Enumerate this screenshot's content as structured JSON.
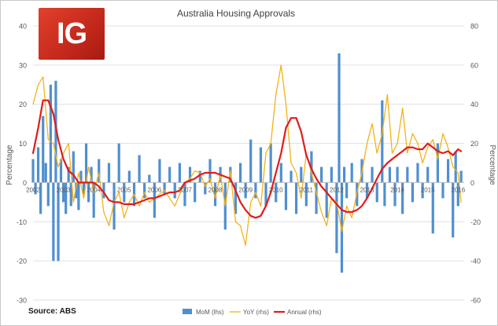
{
  "logo": {
    "text": "IG",
    "color": "#d2321f"
  },
  "source": "Source: ABS",
  "colors": {
    "mom": "#4f8fd0",
    "yoy": "#f3b21a",
    "annual": "#e11b1b",
    "grid": "#e0e0e0",
    "axis": "#bfbfbf",
    "text": "#595959"
  },
  "chart_data": {
    "type": "bar+line",
    "title": "Australia Housing Approvals",
    "ylabel_left": "Percentage",
    "ylabel_right": "Percentage",
    "ylim_left": [
      -30,
      40
    ],
    "ylim_right": [
      -60,
      80
    ],
    "yticks_left": [
      -30,
      -20,
      -10,
      0,
      10,
      20,
      30,
      40
    ],
    "yticks_right": [
      -60,
      -40,
      -20,
      0,
      20,
      40,
      60,
      80
    ],
    "xlim": [
      2002,
      2016.2
    ],
    "xticks": [
      "2002",
      "2003",
      "2004",
      "2005",
      "2006",
      "2007",
      "2008",
      "2009",
      "2010",
      "2011",
      "2012",
      "2013",
      "2014",
      "2015",
      "2016"
    ],
    "legend": {
      "placement": "bottom",
      "entries": [
        "MoM (lhs)",
        "YoY (rhs)",
        "Annual (rhs)"
      ]
    },
    "series": [
      {
        "name": "MoM (lhs)",
        "type": "bar",
        "axis": "left",
        "x": [
          2002.0,
          2002.08,
          2002.17,
          2002.25,
          2002.33,
          2002.42,
          2002.5,
          2002.58,
          2002.67,
          2002.75,
          2002.83,
          2002.92,
          2003.0,
          2003.08,
          2003.17,
          2003.25,
          2003.33,
          2003.42,
          2003.5,
          2003.58,
          2003.67,
          2003.75,
          2003.83,
          2003.92,
          2004.0,
          2004.17,
          2004.33,
          2004.5,
          2004.67,
          2004.83,
          2005.0,
          2005.17,
          2005.33,
          2005.5,
          2005.67,
          2005.83,
          2006.0,
          2006.17,
          2006.33,
          2006.5,
          2006.67,
          2006.83,
          2007.0,
          2007.17,
          2007.33,
          2007.5,
          2007.67,
          2007.83,
          2008.0,
          2008.17,
          2008.33,
          2008.5,
          2008.67,
          2008.83,
          2009.0,
          2009.17,
          2009.33,
          2009.5,
          2009.67,
          2009.83,
          2010.0,
          2010.17,
          2010.33,
          2010.5,
          2010.67,
          2010.83,
          2011.0,
          2011.17,
          2011.33,
          2011.5,
          2011.67,
          2011.83,
          2012.0,
          2012.08,
          2012.17,
          2012.25,
          2012.33,
          2012.5,
          2012.67,
          2012.83,
          2013.0,
          2013.17,
          2013.33,
          2013.5,
          2013.58,
          2013.75,
          2013.92,
          2014.0,
          2014.17,
          2014.33,
          2014.5,
          2014.67,
          2014.83,
          2015.0,
          2015.17,
          2015.33,
          2015.5,
          2015.67,
          2015.83,
          2015.92,
          2016.0,
          2016.1
        ],
        "values": [
          6,
          -3,
          9,
          -8,
          17,
          5,
          -6,
          25,
          -20,
          26,
          -20,
          6,
          -5,
          -8,
          4,
          -6,
          8,
          -4,
          -7,
          3,
          -3,
          10,
          -5,
          4,
          -9,
          6,
          -4,
          5,
          -12,
          10,
          -5,
          3,
          -6,
          7,
          -4,
          2,
          -9,
          6,
          -3,
          4,
          -4,
          5,
          -6,
          4,
          -5,
          3,
          -3,
          6,
          -6,
          4,
          -12,
          4,
          -8,
          5,
          -4,
          11,
          -4,
          9,
          -6,
          10,
          -5,
          5,
          -7,
          3,
          -8,
          4,
          -6,
          8,
          -8,
          4,
          -9,
          4,
          -18,
          33,
          -23,
          4,
          -4,
          5,
          -6,
          6,
          -4,
          4,
          -5,
          21,
          -6,
          4,
          -6,
          4,
          -8,
          4,
          -5,
          5,
          -4,
          4,
          -13,
          10,
          -4,
          6,
          -14,
          8,
          -6,
          3
        ]
      },
      {
        "name": "YoY (rhs)",
        "type": "line",
        "axis": "right",
        "x": [
          2002.0,
          2002.17,
          2002.33,
          2002.5,
          2002.67,
          2002.83,
          2003.0,
          2003.17,
          2003.33,
          2003.5,
          2003.67,
          2003.83,
          2004.0,
          2004.17,
          2004.33,
          2004.5,
          2004.67,
          2004.83,
          2005.0,
          2005.17,
          2005.33,
          2005.5,
          2005.67,
          2005.83,
          2006.0,
          2006.17,
          2006.33,
          2006.5,
          2006.67,
          2006.83,
          2007.0,
          2007.17,
          2007.33,
          2007.5,
          2007.67,
          2007.83,
          2008.0,
          2008.17,
          2008.33,
          2008.5,
          2008.67,
          2008.83,
          2009.0,
          2009.17,
          2009.33,
          2009.5,
          2009.67,
          2009.83,
          2010.0,
          2010.17,
          2010.33,
          2010.5,
          2010.67,
          2010.83,
          2011.0,
          2011.17,
          2011.33,
          2011.5,
          2011.67,
          2011.83,
          2012.0,
          2012.17,
          2012.33,
          2012.5,
          2012.67,
          2012.83,
          2013.0,
          2013.17,
          2013.33,
          2013.5,
          2013.67,
          2013.83,
          2014.0,
          2014.17,
          2014.33,
          2014.5,
          2014.67,
          2014.83,
          2015.0,
          2015.17,
          2015.33,
          2015.5,
          2015.67,
          2015.83,
          2016.0,
          2016.1
        ],
        "values": [
          40,
          50,
          54,
          22,
          20,
          8,
          15,
          20,
          -10,
          5,
          -8,
          8,
          -5,
          5,
          -15,
          -22,
          -10,
          -5,
          -18,
          -10,
          -6,
          -12,
          -5,
          -10,
          -8,
          -6,
          -4,
          -8,
          -12,
          -6,
          0,
          2,
          6,
          5,
          -2,
          2,
          -8,
          4,
          -12,
          6,
          -20,
          -22,
          -32,
          -10,
          -5,
          -12,
          15,
          20,
          45,
          60,
          40,
          10,
          5,
          -8,
          15,
          5,
          -5,
          -15,
          -22,
          -8,
          -10,
          -25,
          -12,
          -18,
          -5,
          5,
          20,
          30,
          15,
          25,
          45,
          15,
          20,
          38,
          15,
          25,
          20,
          10,
          18,
          22,
          12,
          25,
          18,
          8,
          5,
          -10
        ]
      },
      {
        "name": "Annual (rhs)",
        "type": "line",
        "axis": "right",
        "x": [
          2002.0,
          2002.17,
          2002.33,
          2002.5,
          2002.67,
          2002.83,
          2003.0,
          2003.17,
          2003.33,
          2003.5,
          2003.67,
          2003.83,
          2004.0,
          2004.17,
          2004.33,
          2004.5,
          2004.67,
          2004.83,
          2005.0,
          2005.17,
          2005.33,
          2005.5,
          2005.67,
          2005.83,
          2006.0,
          2006.17,
          2006.33,
          2006.5,
          2006.67,
          2006.83,
          2007.0,
          2007.17,
          2007.33,
          2007.5,
          2007.67,
          2007.83,
          2008.0,
          2008.17,
          2008.33,
          2008.5,
          2008.67,
          2008.83,
          2009.0,
          2009.17,
          2009.33,
          2009.5,
          2009.67,
          2009.83,
          2010.0,
          2010.17,
          2010.33,
          2010.5,
          2010.67,
          2010.83,
          2011.0,
          2011.17,
          2011.33,
          2011.5,
          2011.67,
          2011.83,
          2012.0,
          2012.17,
          2012.33,
          2012.5,
          2012.67,
          2012.83,
          2013.0,
          2013.17,
          2013.33,
          2013.5,
          2013.67,
          2013.83,
          2014.0,
          2014.17,
          2014.33,
          2014.5,
          2014.67,
          2014.83,
          2015.0,
          2015.17,
          2015.33,
          2015.5,
          2015.67,
          2015.83,
          2016.0,
          2016.1
        ],
        "values": [
          15,
          28,
          42,
          42,
          35,
          22,
          12,
          6,
          4,
          0,
          0,
          0,
          0,
          -2,
          -5,
          -9,
          -10,
          -10,
          -11,
          -11,
          -11,
          -10,
          -9,
          -8,
          -8,
          -7,
          -6,
          -5,
          -5,
          -4,
          0,
          1,
          2,
          4,
          5,
          5,
          5,
          4,
          3,
          2,
          -4,
          -10,
          -14,
          -17,
          -18,
          -17,
          -12,
          -5,
          5,
          15,
          28,
          33,
          33,
          26,
          14,
          7,
          2,
          -2,
          -5,
          -8,
          -11,
          -14,
          -15,
          -15,
          -14,
          -12,
          -8,
          -3,
          2,
          7,
          10,
          12,
          14,
          16,
          18,
          18,
          17,
          17,
          20,
          18,
          16,
          15,
          16,
          14,
          17,
          16
        ]
      }
    ]
  }
}
